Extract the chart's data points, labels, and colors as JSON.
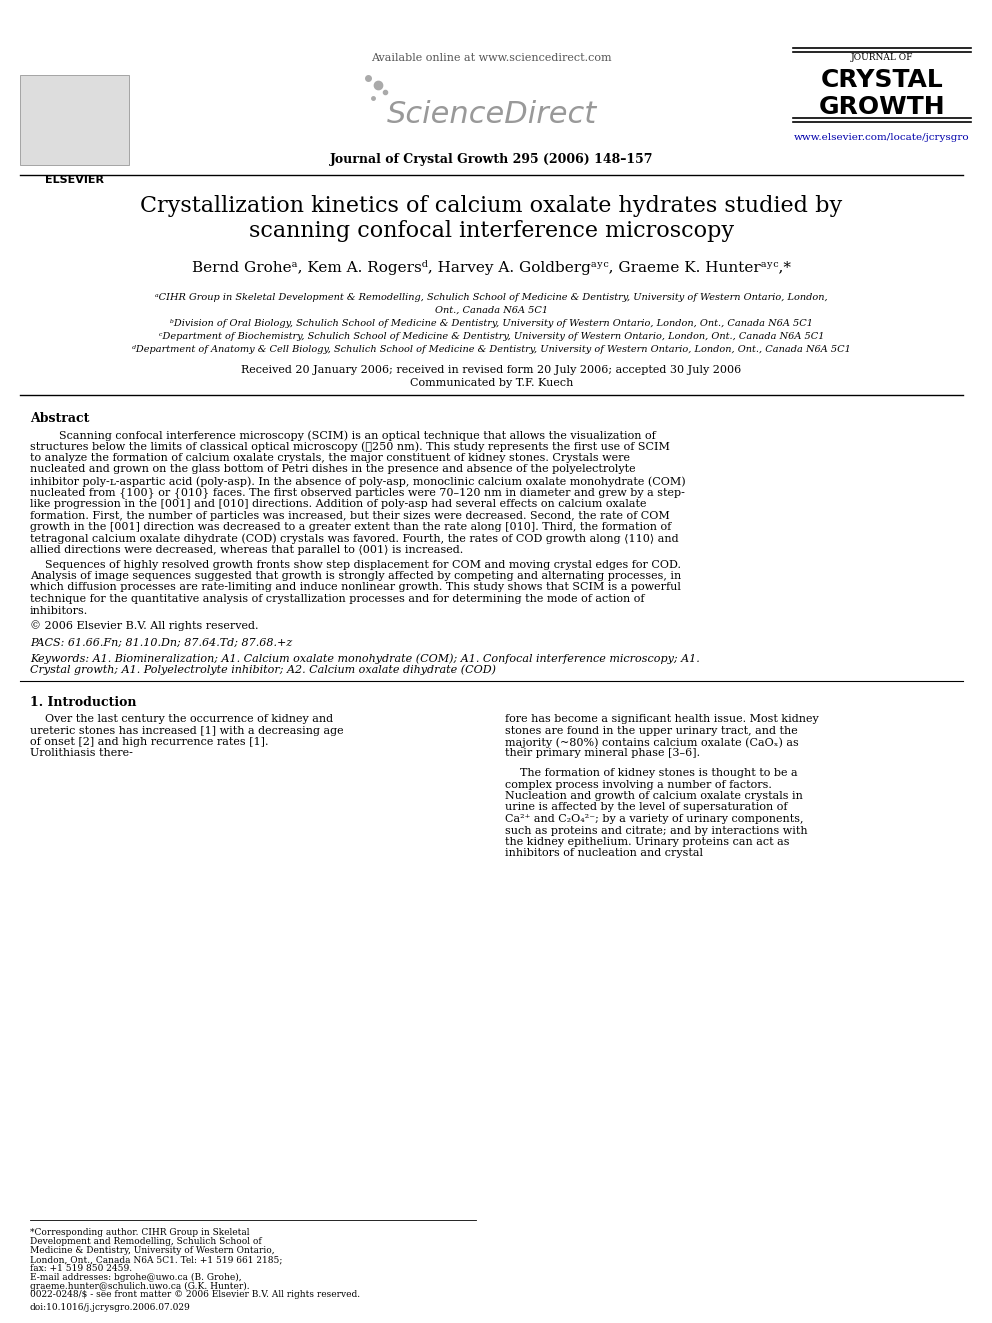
{
  "bg_color": "#ffffff",
  "title_line1": "Crystallization kinetics of calcium oxalate hydrates studied by",
  "title_line2": "scanning confocal interference microscopy",
  "authors": "Bernd Groheᵃ, Kem A. Rogersᵈ, Harvey A. Goldbergᵃʸᶜ, Graeme K. Hunterᵃʸᶜ,*",
  "affil_a": "ᵃCIHR Group in Skeletal Development & Remodelling, Schulich School of Medicine & Dentistry, University of Western Ontario, London,",
  "affil_a2": "Ont., Canada N6A 5C1",
  "affil_b": "ᵇDivision of Oral Biology, Schulich School of Medicine & Dentistry, University of Western Ontario, London, Ont., Canada N6A 5C1",
  "affil_c": "ᶜDepartment of Biochemistry, Schulich School of Medicine & Dentistry, University of Western Ontario, London, Ont., Canada N6A 5C1",
  "affil_d": "ᵈDepartment of Anatomy & Cell Biology, Schulich School of Medicine & Dentistry, University of Western Ontario, London, Ont., Canada N6A 5C1",
  "dates": "Received 20 January 2006; received in revised form 20 July 2006; accepted 30 July 2006",
  "communicated": "Communicated by T.F. Kuech",
  "journal_ref": "Journal of Crystal Growth 295 (2006) 148–157",
  "available_online": "Available online at www.sciencedirect.com",
  "url": "www.elsevier.com/locate/jcrysgro",
  "journal_name_small": "JOURNAL OF",
  "journal_name_big1": "CRYSTAL",
  "journal_name_big2": "GROWTH",
  "abstract_title": "Abstract",
  "abstract_p1": "Scanning confocal interference microscopy (SCIM) is an optical technique that allows the visualization of structures below the limits of classical optical microscopy (≪250 nm). This study represents the first use of SCIM to analyze the formation of calcium oxalate crystals, the major constituent of kidney stones. Crystals were nucleated and grown on the glass bottom of Petri dishes in the presence and absence of the polyelectrolyte inhibitor poly-ʟ-aspartic acid (poly-asp). In the absence of poly-asp, monoclinic calcium oxalate monohydrate (COM) nucleated from {100} or {010} faces. The first observed particles were 70–120 nm in diameter and grew by a step-like progression in the [001] and [010] directions. Addition of poly-asp had several effects on calcium oxalate formation. First, the number of particles was increased, but their sizes were decreased. Second, the rate of COM growth in the [001] direction was decreased to a greater extent than the rate along [010]. Third, the formation of tetragonal calcium oxalate dihydrate (COD) crystals was favored. Fourth, the rates of COD growth along ⟨110⟩ and allied directions were decreased, whereas that parallel to ⟨001⟩ is increased.",
  "abstract_p2": "Sequences of highly resolved growth fronts show step displacement for COM and moving crystal edges for COD. Analysis of image sequences suggested that growth is strongly affected by competing and alternating processes, in which diffusion processes are rate-limiting and induce nonlinear growth. This study shows that SCIM is a powerful technique for the quantitative analysis of crystallization processes and for determining the mode of action of inhibitors.",
  "abstract_copy": "© 2006 Elsevier B.V. All rights reserved.",
  "pacs": "PACS: 61.66.Fn; 81.10.Dn; 87.64.Td; 87.68.+z",
  "keywords": "Keywords: A1. Biomineralization; A1. Calcium oxalate monohydrate (COM); A1. Confocal interference microscopy; A1. Crystal growth; A1. Polyelectrolyte inhibitor; A2. Calcium oxalate dihydrate (COD)",
  "intro_heading": "1. Introduction",
  "intro_p1": "Over the last century the occurrence of kidney and ureteric stones has increased [1] with a decreasing age of onset [2] and high recurrence rates [1]. Urolithiasis there-",
  "intro_p2_right": "fore has become a significant health issue. Most kidney stones are found in the upper urinary tract, and the majority (~80%) contains calcium oxalate (CaOₓ) as their primary mineral phase [3–6].",
  "intro_p3_right": "The formation of kidney stones is thought to be a complex process involving a number of factors. Nucleation and growth of calcium oxalate crystals in urine is affected by the level of supersaturation of Ca²⁺ and C₂O₄²⁻; by a variety of urinary components, such as proteins and citrate; and by interactions with the kidney epithelium. Urinary proteins can act as inhibitors of nucleation and crystal",
  "footnote_star": "*Corresponding author. CIHR Group in Skeletal Development and Remodelling, Schulich School of Medicine & Dentistry, University of Western Ontario, London, Ont., Canada N6A 5C1. Tel: +1 519 661 2185; fax: +1 519 850 2459.",
  "footnote_email": "E-mail addresses: bgrohe@uwo.ca (B. Grohe), graeme.hunter@schulich.uwo.ca (G.K. Hunter).",
  "bottom_note": "0022-0248/$ - see front matter © 2006 Elsevier B.V. All rights reserved.",
  "doi": "doi:10.1016/j.jcrysgro.2006.07.029"
}
